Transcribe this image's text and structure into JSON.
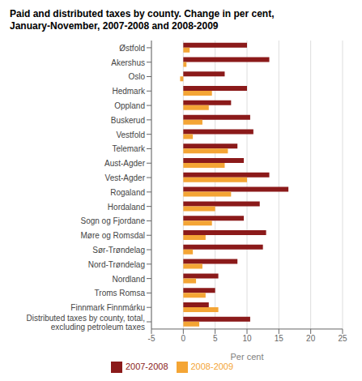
{
  "chart_data": {
    "type": "bar",
    "orientation": "horizontal",
    "title": "Paid and distributed taxes by county. Change in per cent,\nJanuary-November, 2007-2008 and 2008-2009",
    "categories": [
      "Østfold",
      "Akershus",
      "Oslo",
      "Hedmark",
      "Oppland",
      "Buskerud",
      "Vestfold",
      "Telemark",
      "Aust-Agder",
      "Vest-Agder",
      "Rogaland",
      "Hordaland",
      "Sogn og Fjordane",
      "Møre og Romsdal",
      "Sør-Trøndelag",
      "Nord-Trøndelag",
      "Nordland",
      "Troms Romsa",
      "Finnmark Finnmárku",
      "Distributed taxes by county, total,\nexcluding petroleum taxes"
    ],
    "series": [
      {
        "name": "2007-2008",
        "color": "#8B1A1A",
        "values": [
          10.0,
          13.5,
          6.5,
          10.0,
          7.5,
          10.5,
          11.0,
          8.5,
          9.5,
          13.5,
          16.5,
          12.0,
          9.5,
          13.0,
          12.5,
          8.5,
          5.5,
          5.0,
          4.0,
          10.5
        ]
      },
      {
        "name": "2008-2009",
        "color": "#F4A535",
        "values": [
          1.0,
          0.5,
          -0.5,
          4.5,
          4.0,
          3.0,
          1.5,
          7.0,
          6.5,
          10.0,
          7.5,
          5.0,
          4.5,
          3.5,
          1.5,
          3.0,
          2.0,
          3.5,
          5.5,
          2.5
        ]
      }
    ],
    "xlabel": "Per cent",
    "xlim": [
      -5,
      25
    ],
    "xticks": [
      -5,
      0,
      5,
      10,
      15,
      20,
      25
    ],
    "grid": true,
    "legend": "bottom"
  }
}
